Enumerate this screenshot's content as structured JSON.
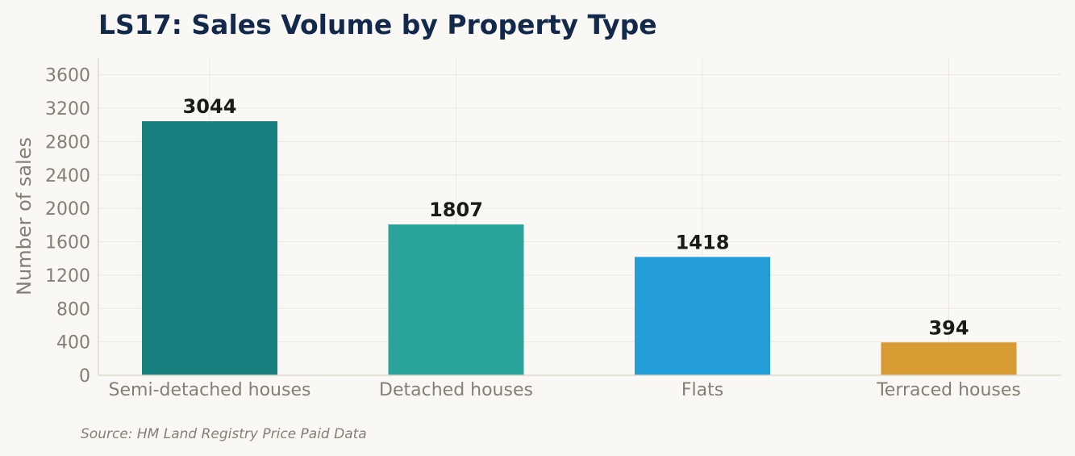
{
  "chart_data": {
    "type": "bar",
    "title": "LS17: Sales Volume by Property Type",
    "xlabel": "",
    "ylabel": "Number of sales",
    "categories": [
      "Semi-detached houses",
      "Detached houses",
      "Flats",
      "Terraced houses"
    ],
    "values": [
      3044,
      1807,
      1418,
      394
    ],
    "value_labels": [
      "3044",
      "1807",
      "1418",
      "394"
    ],
    "colors": [
      "#17807e",
      "#2aa39a",
      "#239dd8",
      "#d89a33"
    ],
    "ylim": [
      0,
      3800
    ],
    "yticks": [
      0,
      400,
      800,
      1200,
      1600,
      2000,
      2400,
      2800,
      3200,
      3600
    ],
    "grid": true,
    "legend": "none"
  },
  "source": "Source: HM Land Registry Price Paid Data"
}
